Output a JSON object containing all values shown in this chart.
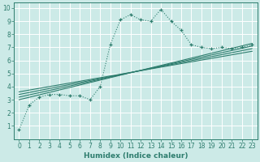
{
  "xlabel": "Humidex (Indice chaleur)",
  "bg_color": "#cceae7",
  "grid_color": "#ffffff",
  "line_color": "#2e7d6e",
  "xlim": [
    -0.5,
    23.5
  ],
  "ylim": [
    0,
    10.4
  ],
  "xticks": [
    0,
    1,
    2,
    3,
    4,
    5,
    6,
    7,
    8,
    9,
    10,
    11,
    12,
    13,
    14,
    15,
    16,
    17,
    18,
    19,
    20,
    21,
    22,
    23
  ],
  "yticks": [
    1,
    2,
    3,
    4,
    5,
    6,
    7,
    8,
    9,
    10
  ],
  "series_x": [
    0,
    1,
    2,
    3,
    4,
    5,
    6,
    7,
    8,
    9,
    10,
    11,
    12,
    13,
    14,
    15,
    16,
    17,
    18,
    19,
    20,
    21,
    22,
    23
  ],
  "series_y": [
    0.7,
    2.6,
    3.2,
    3.4,
    3.4,
    3.3,
    3.3,
    3.0,
    4.0,
    7.2,
    9.1,
    9.5,
    9.1,
    9.0,
    9.9,
    9.0,
    8.3,
    7.2,
    7.0,
    6.9,
    7.0,
    6.9,
    7.0,
    7.2
  ],
  "linear_series": [
    {
      "x": [
        0,
        23
      ],
      "y": [
        3.0,
        7.3
      ]
    },
    {
      "x": [
        0,
        23
      ],
      "y": [
        3.2,
        7.1
      ]
    },
    {
      "x": [
        0,
        23
      ],
      "y": [
        3.4,
        6.9
      ]
    },
    {
      "x": [
        0,
        23
      ],
      "y": [
        3.6,
        6.7
      ]
    }
  ],
  "tick_fontsize": 5.5,
  "xlabel_fontsize": 6.5,
  "tick_color": "#2e7d6e",
  "spine_color": "#2e7d6e"
}
